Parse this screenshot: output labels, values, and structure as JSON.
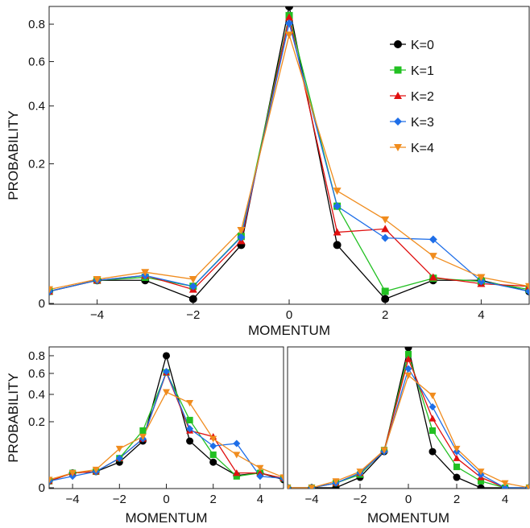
{
  "chart_data": [
    {
      "type": "line",
      "xlabel": "MOMENTUM",
      "ylabel": "PROBABILITY",
      "xlim": [
        -5,
        5
      ],
      "y_scale": "sqrt",
      "ylim": [
        0,
        0.9
      ],
      "xticks": [
        -4,
        -2,
        0,
        2,
        4
      ],
      "xtick_labels": [
        "−4",
        "−2",
        "0",
        "2",
        "4"
      ],
      "yticks": [
        0,
        0.2,
        0.4,
        0.6,
        0.8
      ],
      "ytick_labels": [
        "0",
        "0.2",
        "0.4",
        "0.6",
        "0.8"
      ],
      "legend_position": "top-right",
      "x": [
        -5,
        -4,
        -3,
        -2,
        -1,
        0,
        1,
        2,
        3,
        4,
        5
      ],
      "series": [
        {
          "name": "K=0",
          "color": "#000000",
          "marker": "circle",
          "values": [
            0.0015,
            0.0055,
            0.0055,
            0.0002,
            0.035,
            0.905,
            0.035,
            0.0002,
            0.0055,
            0.0055,
            0.0015
          ]
        },
        {
          "name": "K=1",
          "color": "#22c022",
          "marker": "square",
          "values": [
            0.0015,
            0.0055,
            0.007,
            0.003,
            0.046,
            0.85,
            0.097,
            0.0015,
            0.0065,
            0.005,
            0.002
          ]
        },
        {
          "name": "K=2",
          "color": "#e01010",
          "marker": "triangle-up",
          "values": [
            0.0015,
            0.0055,
            0.008,
            0.002,
            0.04,
            0.84,
            0.052,
            0.057,
            0.007,
            0.004,
            0.003
          ]
        },
        {
          "name": "K=3",
          "color": "#1e6ee8",
          "marker": "diamond",
          "values": [
            0.0015,
            0.0055,
            0.008,
            0.003,
            0.045,
            0.805,
            0.097,
            0.044,
            0.042,
            0.005,
            0.0015
          ]
        },
        {
          "name": "K=4",
          "color": "#f08c1e",
          "marker": "triangle-down",
          "values": [
            0.002,
            0.006,
            0.01,
            0.006,
            0.055,
            0.74,
            0.13,
            0.072,
            0.023,
            0.007,
            0.003
          ]
        }
      ]
    },
    {
      "type": "line",
      "xlabel": "MOMENTUM",
      "ylabel": "PROBABILITY",
      "xlim": [
        -5,
        5
      ],
      "y_scale": "sqrt",
      "ylim": [
        0,
        0.9
      ],
      "xticks": [
        -4,
        -2,
        0,
        2,
        4
      ],
      "xtick_labels": [
        "−4",
        "−2",
        "0",
        "2",
        "4"
      ],
      "yticks": [
        0,
        0.2,
        0.4,
        0.6,
        0.8
      ],
      "ytick_labels": [
        "0",
        "0.2",
        "0.4",
        "0.6",
        "0.8"
      ],
      "x": [
        -5,
        -4,
        -3,
        -2,
        -1,
        0,
        1,
        2,
        3,
        4,
        5
      ],
      "series": [
        {
          "name": "K=0",
          "color": "#000000",
          "marker": "circle",
          "values": [
            0.002,
            0.01,
            0.012,
            0.03,
            0.1,
            0.8,
            0.1,
            0.03,
            0.007,
            0.01,
            0.003
          ]
        },
        {
          "name": "K=1",
          "color": "#22c022",
          "marker": "square",
          "values": [
            0.002,
            0.01,
            0.012,
            0.04,
            0.15,
            0.61,
            0.21,
            0.05,
            0.006,
            0.01,
            0.004
          ]
        },
        {
          "name": "K=2",
          "color": "#e01010",
          "marker": "triangle-up",
          "values": [
            0.002,
            0.01,
            0.012,
            0.04,
            0.11,
            0.61,
            0.15,
            0.12,
            0.01,
            0.01,
            0.004
          ]
        },
        {
          "name": "K=3",
          "color": "#1e6ee8",
          "marker": "diamond",
          "values": [
            0.002,
            0.006,
            0.012,
            0.04,
            0.11,
            0.62,
            0.16,
            0.08,
            0.09,
            0.006,
            0.004
          ]
        },
        {
          "name": "K=4",
          "color": "#f08c1e",
          "marker": "triangle-down",
          "values": [
            0.003,
            0.01,
            0.015,
            0.07,
            0.12,
            0.42,
            0.33,
            0.11,
            0.05,
            0.018,
            0.005
          ]
        }
      ]
    },
    {
      "type": "line",
      "xlabel": "MOMENTUM",
      "ylabel": "",
      "xlim": [
        -5,
        5
      ],
      "y_scale": "sqrt",
      "ylim": [
        0,
        0.9
      ],
      "xticks": [
        -4,
        -2,
        0,
        2,
        4
      ],
      "xtick_labels": [
        "−4",
        "−2",
        "0",
        "2",
        "4"
      ],
      "x": [
        -5,
        -4,
        -3,
        -2,
        -1,
        0,
        1,
        2,
        3,
        4,
        5
      ],
      "series": [
        {
          "name": "K=0",
          "color": "#000000",
          "marker": "circle",
          "values": [
            0.0,
            0.0,
            0.0,
            0.005,
            0.06,
            0.9,
            0.06,
            0.005,
            0.0,
            0.0,
            0.0
          ]
        },
        {
          "name": "K=1",
          "color": "#22c022",
          "marker": "square",
          "values": [
            0.0,
            0.0,
            0.001,
            0.008,
            0.065,
            0.82,
            0.15,
            0.02,
            0.002,
            0.0,
            0.0
          ]
        },
        {
          "name": "K=2",
          "color": "#e01010",
          "marker": "triangle-up",
          "values": [
            0.0,
            0.0,
            0.001,
            0.01,
            0.065,
            0.76,
            0.22,
            0.04,
            0.005,
            0.0,
            0.0
          ]
        },
        {
          "name": "K=3",
          "color": "#1e6ee8",
          "marker": "diamond",
          "values": [
            0.0,
            0.0,
            0.001,
            0.01,
            0.06,
            0.65,
            0.3,
            0.06,
            0.008,
            0.0,
            0.0
          ]
        },
        {
          "name": "K=4",
          "color": "#f08c1e",
          "marker": "triangle-down",
          "values": [
            0.0,
            0.0,
            0.002,
            0.012,
            0.065,
            0.58,
            0.39,
            0.07,
            0.012,
            0.001,
            0.0
          ]
        }
      ]
    }
  ]
}
